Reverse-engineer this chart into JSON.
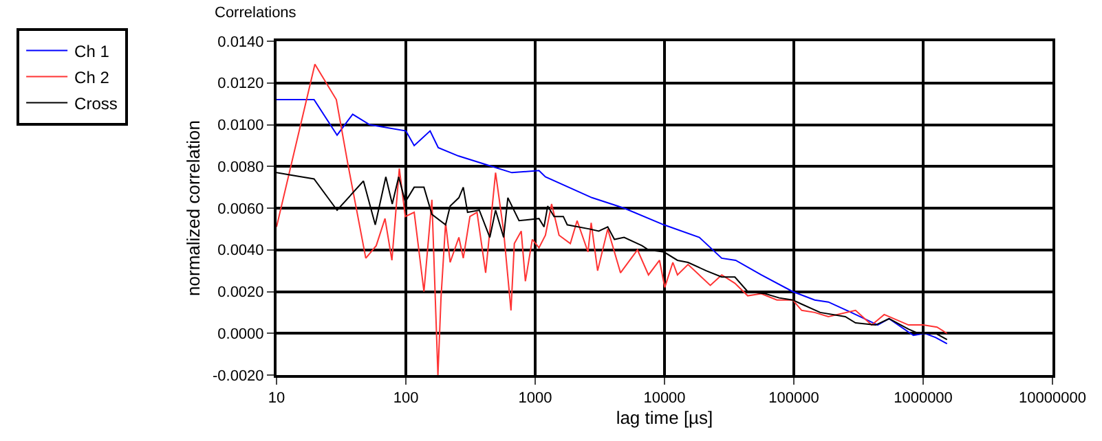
{
  "chart_data": {
    "type": "line",
    "title": "Correlations",
    "xlabel": "lag time [µs]",
    "ylabel": "normalized correlation",
    "log": "x",
    "grid": true,
    "legend": "top left",
    "marker": "none",
    "line_style": "solid",
    "xlim": [
      10,
      10000000
    ],
    "xticks": [
      10,
      100,
      1000,
      10000,
      100000,
      1000000,
      10000000
    ],
    "ylim": [
      -0.002,
      0.014
    ],
    "yticks": [
      {
        "value": -0.002,
        "label": "-0.0020"
      },
      {
        "value": 0,
        "label": "0.0000"
      },
      {
        "value": 0.002,
        "label": "0.0020"
      },
      {
        "value": 0.004,
        "label": "0.0040"
      },
      {
        "value": 0.006,
        "label": "0.0060"
      },
      {
        "value": 0.008,
        "label": "0.0080"
      },
      {
        "value": 0.01,
        "label": "0.0100"
      },
      {
        "value": 0.012,
        "label": "0.0120"
      },
      {
        "value": 0.014,
        "label": "0.0140"
      }
    ],
    "series": [
      {
        "name": "Ch 1",
        "color": "#0000ff",
        "x": [
          10,
          19.5,
          29.4,
          38.8,
          52.5,
          100,
          116,
          154,
          178,
          255,
          411,
          660,
          1070,
          1200,
          2750,
          4870,
          9900,
          18600,
          27700,
          35500,
          56000,
          98000,
          145000,
          185000,
          278000,
          445000,
          545000,
          840000,
          1030000,
          1250000,
          1530000
        ],
        "values": [
          0.0112,
          0.0112,
          0.0095,
          0.0105,
          0.01,
          0.0097,
          0.009,
          0.0097,
          0.0089,
          0.0085,
          0.0081,
          0.0077,
          0.0078,
          0.0075,
          0.0065,
          0.006,
          0.0052,
          0.0046,
          0.0036,
          0.0035,
          0.0028,
          0.002,
          0.0016,
          0.0015,
          0.001,
          0.0004,
          0.0007,
          -0.0001,
          0.0,
          -0.0002,
          -0.0005
        ]
      },
      {
        "name": "Ch 2",
        "color": "#ff3333",
        "x": [
          10,
          19.8,
          29,
          35.4,
          49,
          59,
          69,
          78,
          89,
          99,
          116,
          138,
          159,
          177,
          187,
          203,
          220,
          257,
          278,
          313,
          355,
          414,
          494,
          570,
          650,
          690,
          780,
          840,
          950,
          1070,
          1200,
          1340,
          1530,
          1870,
          2110,
          2560,
          2710,
          3040,
          3640,
          4570,
          6180,
          7520,
          9150,
          10050,
          11600,
          12600,
          15200,
          22600,
          27700,
          35000,
          44000,
          56000,
          74000,
          98000,
          115000,
          145000,
          185000,
          300000,
          400000,
          500000,
          770000,
          1000000,
          1280000,
          1530000
        ],
        "values": [
          0.0051,
          0.0129,
          0.0112,
          0.0082,
          0.0036,
          0.0042,
          0.0055,
          0.0035,
          0.0079,
          0.0056,
          0.0058,
          0.002,
          0.0064,
          -0.002,
          0.0017,
          0.0053,
          0.0034,
          0.0046,
          0.0036,
          0.0056,
          0.0058,
          0.0029,
          0.0077,
          0.0049,
          0.0011,
          0.0043,
          0.0049,
          0.0025,
          0.0045,
          0.0041,
          0.0047,
          0.0062,
          0.0047,
          0.0043,
          0.0054,
          0.0039,
          0.0053,
          0.003,
          0.005,
          0.0029,
          0.004,
          0.0028,
          0.0035,
          0.0022,
          0.0034,
          0.0028,
          0.0033,
          0.0023,
          0.0028,
          0.0024,
          0.0018,
          0.0019,
          0.0016,
          0.0016,
          0.0011,
          0.001,
          0.0008,
          0.0011,
          0.0004,
          0.0009,
          0.0004,
          0.0004,
          0.0003,
          0.0
        ]
      },
      {
        "name": "Cross",
        "color": "#000000",
        "x": [
          10,
          19.5,
          29.4,
          47,
          58,
          70,
          78.5,
          88,
          99,
          116,
          138,
          159,
          203,
          220,
          257,
          278,
          300,
          370,
          446,
          494,
          570,
          615,
          750,
          1070,
          1170,
          1250,
          1400,
          1650,
          1770,
          2630,
          3100,
          3640,
          4100,
          4870,
          6700,
          7520,
          9900,
          12600,
          15200,
          21000,
          27700,
          35000,
          44000,
          60000,
          77000,
          98000,
          115000,
          160000,
          250000,
          300000,
          430000,
          545000,
          770000,
          915000,
          1250000,
          1530000
        ],
        "values": [
          0.0077,
          0.0074,
          0.0059,
          0.0073,
          0.0052,
          0.0075,
          0.0062,
          0.0075,
          0.0063,
          0.007,
          0.007,
          0.0057,
          0.0052,
          0.0061,
          0.0065,
          0.007,
          0.0058,
          0.0059,
          0.0046,
          0.0059,
          0.0046,
          0.0065,
          0.0054,
          0.0055,
          0.0051,
          0.0061,
          0.0056,
          0.0056,
          0.0052,
          0.005,
          0.0049,
          0.0051,
          0.0045,
          0.0046,
          0.0042,
          0.004,
          0.0039,
          0.0035,
          0.0034,
          0.003,
          0.0027,
          0.0027,
          0.002,
          0.0019,
          0.0017,
          0.0016,
          0.0014,
          0.001,
          0.0008,
          0.0005,
          0.0004,
          0.0007,
          0.0002,
          0.0,
          0.0,
          -0.0003
        ]
      }
    ]
  }
}
